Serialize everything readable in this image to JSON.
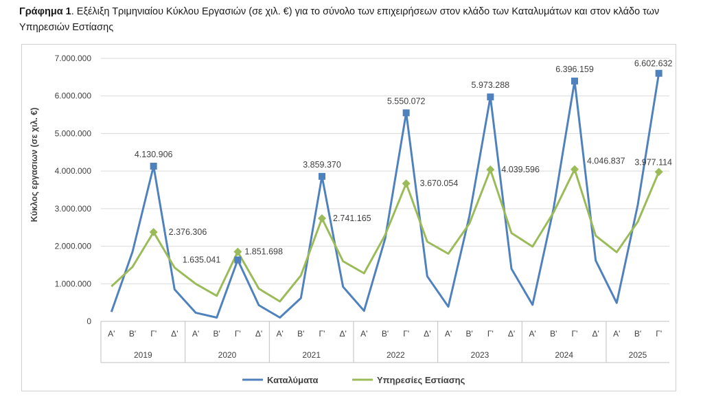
{
  "caption": {
    "label": "Γράφημα 1",
    "text": ". Εξέλιξη Τριμηνιαίου Κύκλου Εργασιών (σε χιλ. €) για το σύνολο των επιχειρήσεων στον κλάδο των Καταλυμάτων και στον κλάδο των Υπηρεσιών Εστίασης"
  },
  "chart_data": {
    "type": "line",
    "ylabel": "Κύκλος εργασιων (σε χιλ. €)",
    "ylim": [
      0,
      7000000
    ],
    "yticks": [
      0,
      1000000,
      2000000,
      3000000,
      4000000,
      5000000,
      6000000,
      7000000
    ],
    "ytick_labels": [
      "0",
      "1.000.000",
      "2.000.000",
      "3.000.000",
      "4.000.000",
      "5.000.000",
      "6.000.000",
      "7.000.000"
    ],
    "quarter_labels": [
      "Α'",
      "Β'",
      "Γ'",
      "Δ'",
      "Α'",
      "Β'",
      "Γ'",
      "Δ'",
      "Α'",
      "Β'",
      "Γ'",
      "Δ'",
      "Α'",
      "Β'",
      "Γ'",
      "Δ'",
      "Α'",
      "Β'",
      "Γ'",
      "Δ'",
      "Α'",
      "Β'",
      "Γ'",
      "Δ'",
      "Α'",
      "Β'",
      "Γ'"
    ],
    "years": [
      {
        "label": "2019",
        "count": 4
      },
      {
        "label": "2020",
        "count": 4
      },
      {
        "label": "2021",
        "count": 4
      },
      {
        "label": "2022",
        "count": 4
      },
      {
        "label": "2023",
        "count": 4
      },
      {
        "label": "2024",
        "count": 4
      },
      {
        "label": "2025",
        "count": 3
      }
    ],
    "legend_position": "bottom",
    "series": [
      {
        "name": "Καταλύματα",
        "color": "#4f81bd",
        "marker": "square",
        "values": [
          250000,
          1850000,
          4130906,
          850000,
          230000,
          100000,
          1635041,
          430000,
          100000,
          620000,
          3859370,
          920000,
          280000,
          2200000,
          5550072,
          1200000,
          390000,
          2800000,
          5973288,
          1400000,
          440000,
          3000000,
          6396159,
          1620000,
          490000,
          3100000,
          6602632
        ],
        "labeled_indices": [
          2,
          6,
          10,
          14,
          18,
          22,
          26
        ],
        "label_texts": [
          "4.130.906",
          "1.635.041",
          "3.859.370",
          "5.550.072",
          "5.973.288",
          "6.396.159",
          "6.602.632"
        ]
      },
      {
        "name": "Υπηρεσίες Εστίασης",
        "color": "#9bbb59",
        "marker": "diamond",
        "values": [
          930000,
          1450000,
          2376306,
          1430000,
          1000000,
          680000,
          1851698,
          870000,
          530000,
          1220000,
          2741165,
          1600000,
          1280000,
          2300000,
          3670054,
          2120000,
          1800000,
          2600000,
          4039596,
          2350000,
          1990000,
          2900000,
          4046837,
          2280000,
          1840000,
          2650000,
          3977114
        ],
        "labeled_indices": [
          2,
          6,
          10,
          14,
          18,
          22,
          26
        ],
        "label_texts": [
          "2.376.306",
          "1.851.698",
          "2.741.165",
          "3.670.054",
          "4.039.596",
          "4.046.837",
          "3.977.114"
        ]
      }
    ]
  }
}
